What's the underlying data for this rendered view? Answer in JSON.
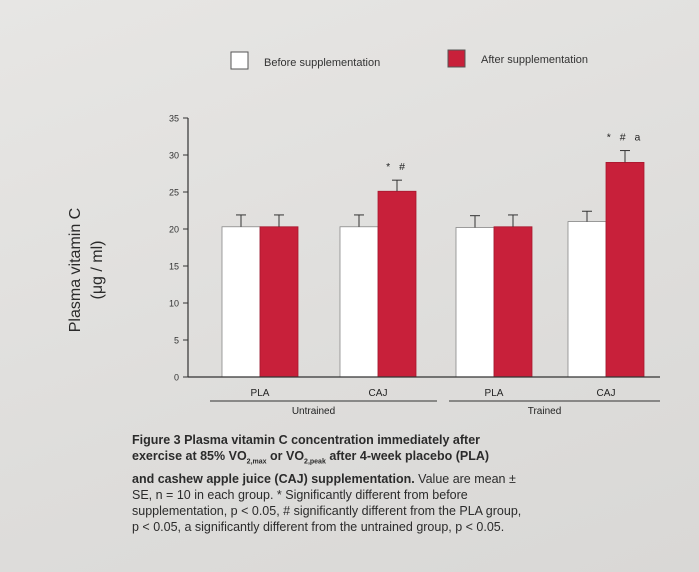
{
  "chart_data": {
    "type": "bar",
    "ylabel_line1": "Plasma vitamin C",
    "ylabel_line2": "(μg / ml)",
    "ylim": [
      0,
      35
    ],
    "yticks": [
      0,
      5,
      10,
      15,
      20,
      25,
      30,
      35
    ],
    "legend_placement": "top",
    "categories": [
      "PLA",
      "CAJ",
      "PLA",
      "CAJ"
    ],
    "groups": [
      {
        "label": "Untrained",
        "categories": [
          "PLA",
          "CAJ"
        ]
      },
      {
        "label": "Trained",
        "categories": [
          "PLA",
          "CAJ"
        ]
      }
    ],
    "series": [
      {
        "name": "Before supplementation",
        "values": [
          20.3,
          20.3,
          20.2,
          21.0
        ],
        "errors": [
          1.6,
          1.6,
          1.6,
          1.4
        ],
        "color": "#ffffff"
      },
      {
        "name": "After supplementation",
        "values": [
          20.3,
          25.1,
          20.3,
          29.0
        ],
        "errors": [
          1.6,
          1.5,
          1.6,
          1.6
        ],
        "color": "#c8203a"
      }
    ],
    "annotations": [
      "",
      "* #",
      "",
      "* # a"
    ]
  },
  "caption": {
    "line1": "Figure 3 Plasma vitamin C concentration immediately after",
    "line2_a": "exercise at 85% VO",
    "line2_sub1": "2,max",
    "line2_b": " or VO",
    "line2_sub2": "2,peak",
    "line2_c": " after 4-week placebo (PLA)",
    "line3_bold": "and cashew apple juice (CAJ) supplementation.",
    "line3_rest": " Value are mean ±",
    "line4": "SE, n = 10 in each group. * Significantly different from before",
    "line5": "supplementation, p < 0.05, # significantly different from the PLA group,",
    "line6": "p < 0.05, a significantly different from the untrained group, p < 0.05."
  }
}
